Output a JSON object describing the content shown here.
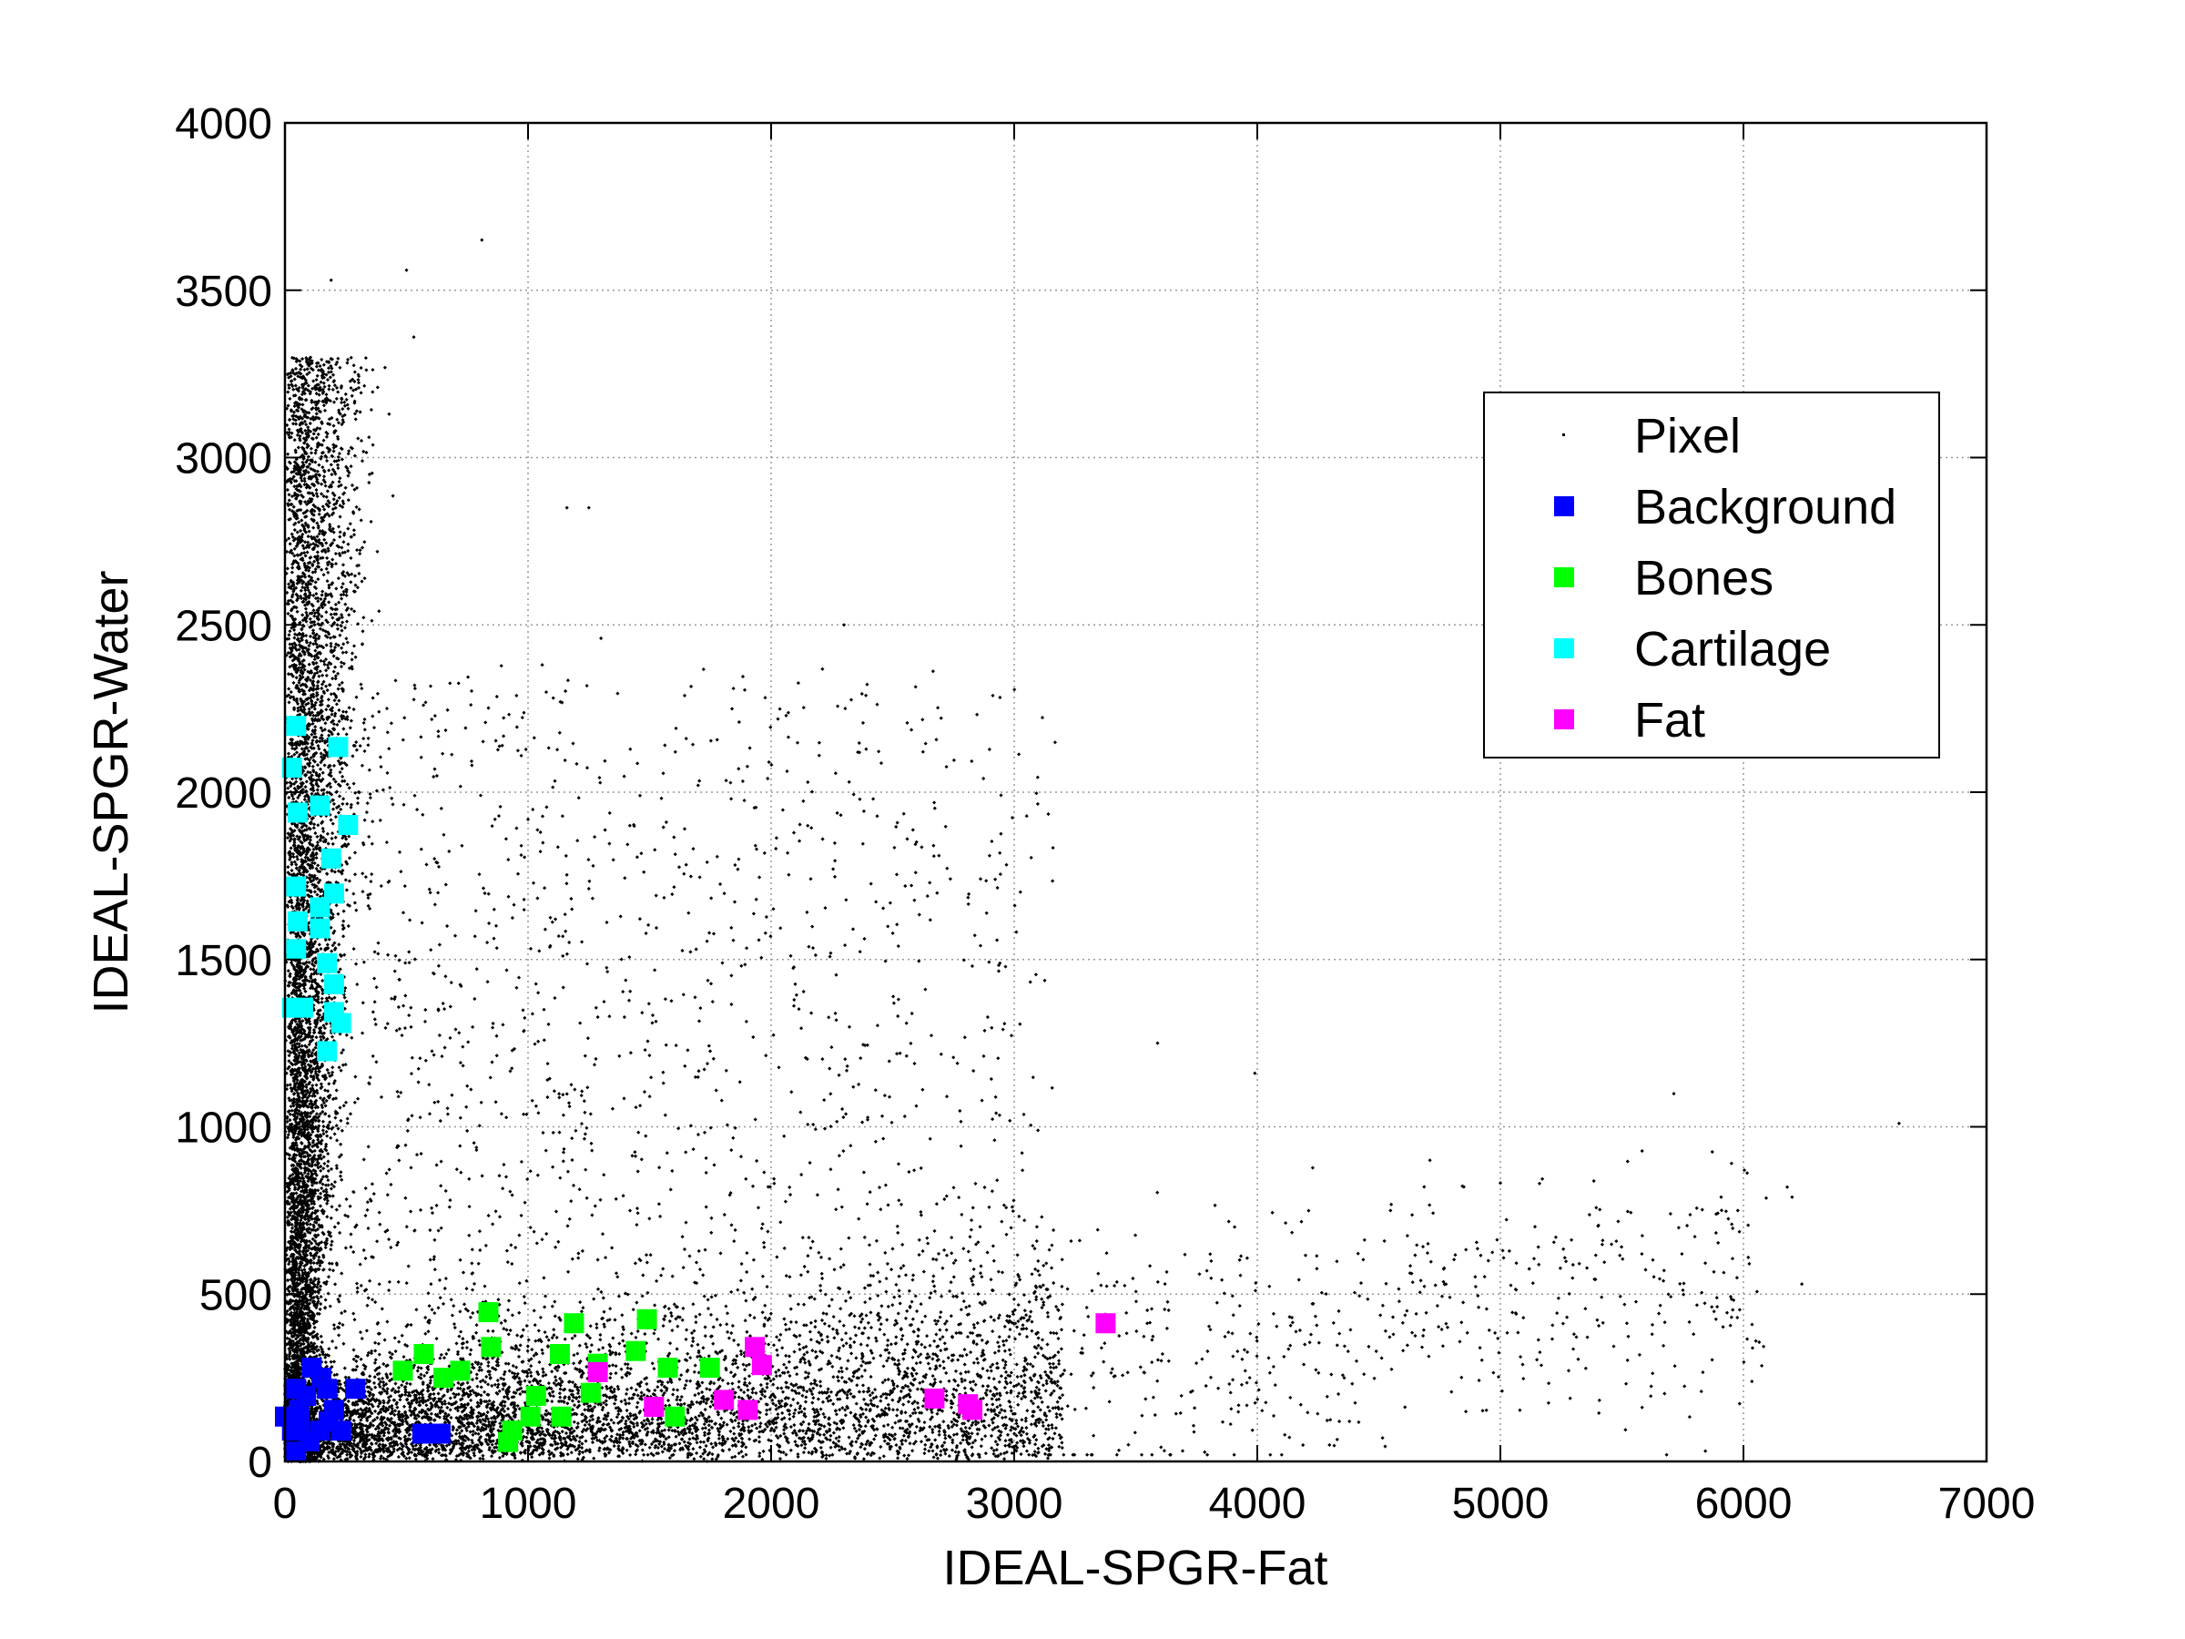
{
  "chart_data": {
    "type": "scatter",
    "title": "",
    "xlabel": "IDEAL-SPGR-Fat",
    "ylabel": "IDEAL-SPGR-Water",
    "xlim": [
      0,
      7000
    ],
    "ylim": [
      0,
      4000
    ],
    "xticks": [
      0,
      1000,
      2000,
      3000,
      4000,
      5000,
      6000,
      7000
    ],
    "yticks": [
      0,
      500,
      1000,
      1500,
      2000,
      2500,
      3000,
      3500,
      4000
    ],
    "xtick_labels": [
      "0",
      "1000",
      "2000",
      "3000",
      "4000",
      "5000",
      "6000",
      "7000"
    ],
    "ytick_labels": [
      "0",
      "500",
      "1000",
      "1500",
      "2000",
      "2500",
      "3000",
      "3500",
      "4000"
    ],
    "grid": true,
    "legend_position": "upper-right",
    "series": [
      {
        "name": "Pixel",
        "color": "#000000",
        "marker": "dot",
        "sample": {
          "seed": 7,
          "n_vertical_band": 6500,
          "n_horizontal_band": 9000,
          "n_diffuse": 2200,
          "n_tail": 700
        },
        "outliers": [
          [
            810,
            3650
          ],
          [
            500,
            3560
          ],
          [
            190,
            3530
          ],
          [
            530,
            3360
          ],
          [
            1250,
            2850
          ],
          [
            1160,
            2850
          ],
          [
            2300,
            2500
          ],
          [
            1300,
            2460
          ],
          [
            2420,
            1980
          ],
          [
            2560,
            1860
          ],
          [
            3590,
            1250
          ],
          [
            3990,
            1160
          ],
          [
            6640,
            1010
          ],
          [
            6180,
            820
          ],
          [
            6200,
            790
          ],
          [
            4710,
            900
          ],
          [
            5700,
            740
          ],
          [
            6240,
            530
          ]
        ]
      },
      {
        "name": "Background",
        "color": "#0000ff",
        "marker": "square",
        "points": [
          [
            110,
            280
          ],
          [
            46,
            217
          ],
          [
            173,
            217
          ],
          [
            289,
            217
          ],
          [
            58,
            154
          ],
          [
            202,
            154
          ],
          [
            29,
            92
          ],
          [
            144,
            92
          ],
          [
            231,
            92
          ],
          [
            46,
            29
          ],
          [
            565,
            83
          ],
          [
            640,
            83
          ],
          [
            87,
            196
          ],
          [
            0,
            134
          ],
          [
            100,
            60
          ],
          [
            150,
            250
          ],
          [
            60,
            120
          ],
          [
            180,
            120
          ]
        ]
      },
      {
        "name": "Bones",
        "color": "#00ff00",
        "marker": "square",
        "points": [
          [
            837,
            446
          ],
          [
            1489,
            425
          ],
          [
            1189,
            413
          ],
          [
            848,
            342
          ],
          [
            1131,
            321
          ],
          [
            1443,
            330
          ],
          [
            571,
            321
          ],
          [
            485,
            271
          ],
          [
            721,
            271
          ],
          [
            652,
            250
          ],
          [
            1287,
            292
          ],
          [
            1575,
            280
          ],
          [
            1748,
            280
          ],
          [
            1033,
            196
          ],
          [
            1258,
            205
          ],
          [
            1137,
            134
          ],
          [
            1604,
            134
          ],
          [
            1010,
            134
          ],
          [
            935,
            92
          ],
          [
            918,
            58
          ]
        ]
      },
      {
        "name": "Cartilage",
        "color": "#00ffff",
        "marker": "square",
        "points": [
          [
            46,
            2198
          ],
          [
            219,
            2135
          ],
          [
            29,
            2073
          ],
          [
            144,
            1960
          ],
          [
            52,
            1939
          ],
          [
            260,
            1902
          ],
          [
            190,
            1802
          ],
          [
            46,
            1718
          ],
          [
            202,
            1697
          ],
          [
            144,
            1656
          ],
          [
            52,
            1614
          ],
          [
            144,
            1593
          ],
          [
            46,
            1531
          ],
          [
            173,
            1489
          ],
          [
            202,
            1426
          ],
          [
            29,
            1356
          ],
          [
            75,
            1356
          ],
          [
            202,
            1343
          ],
          [
            231,
            1310
          ],
          [
            173,
            1226
          ]
        ]
      },
      {
        "name": "Fat",
        "color": "#ff00ff",
        "marker": "square",
        "points": [
          [
            3376,
            413
          ],
          [
            1933,
            342
          ],
          [
            1962,
            288
          ],
          [
            1287,
            267
          ],
          [
            1806,
            184
          ],
          [
            1518,
            163
          ],
          [
            1904,
            154
          ],
          [
            2672,
            188
          ],
          [
            2810,
            171
          ],
          [
            2828,
            154
          ]
        ]
      }
    ]
  }
}
